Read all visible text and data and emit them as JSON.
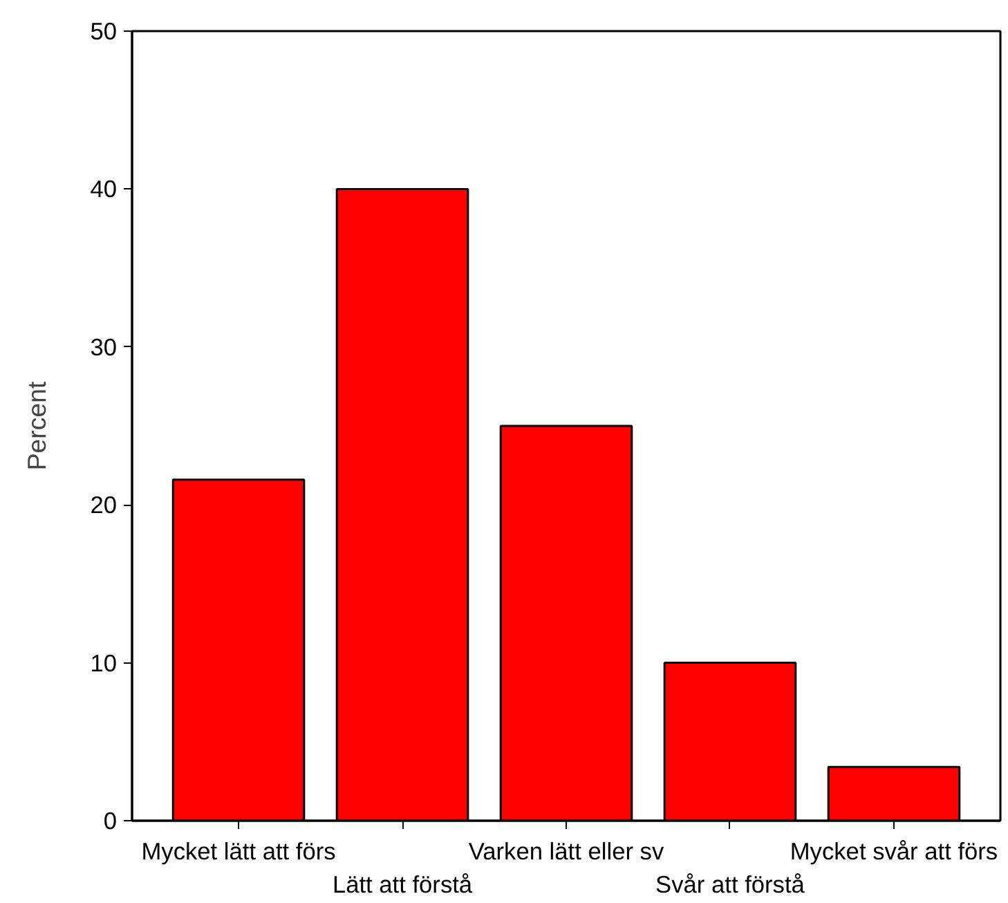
{
  "chart_data": {
    "type": "bar",
    "ylabel": "Percent",
    "categories": [
      "Mycket lätt att förs",
      "Lätt att förstå",
      "Varken lätt eller sv",
      "Svår att förstå",
      "Mycket svår att förs"
    ],
    "values": [
      21.6,
      40,
      25,
      10,
      3.4
    ],
    "color": "#ff0000",
    "ylim": [
      0,
      50
    ],
    "yticks": [
      0,
      10,
      20,
      30,
      40,
      50
    ],
    "grid": false
  }
}
